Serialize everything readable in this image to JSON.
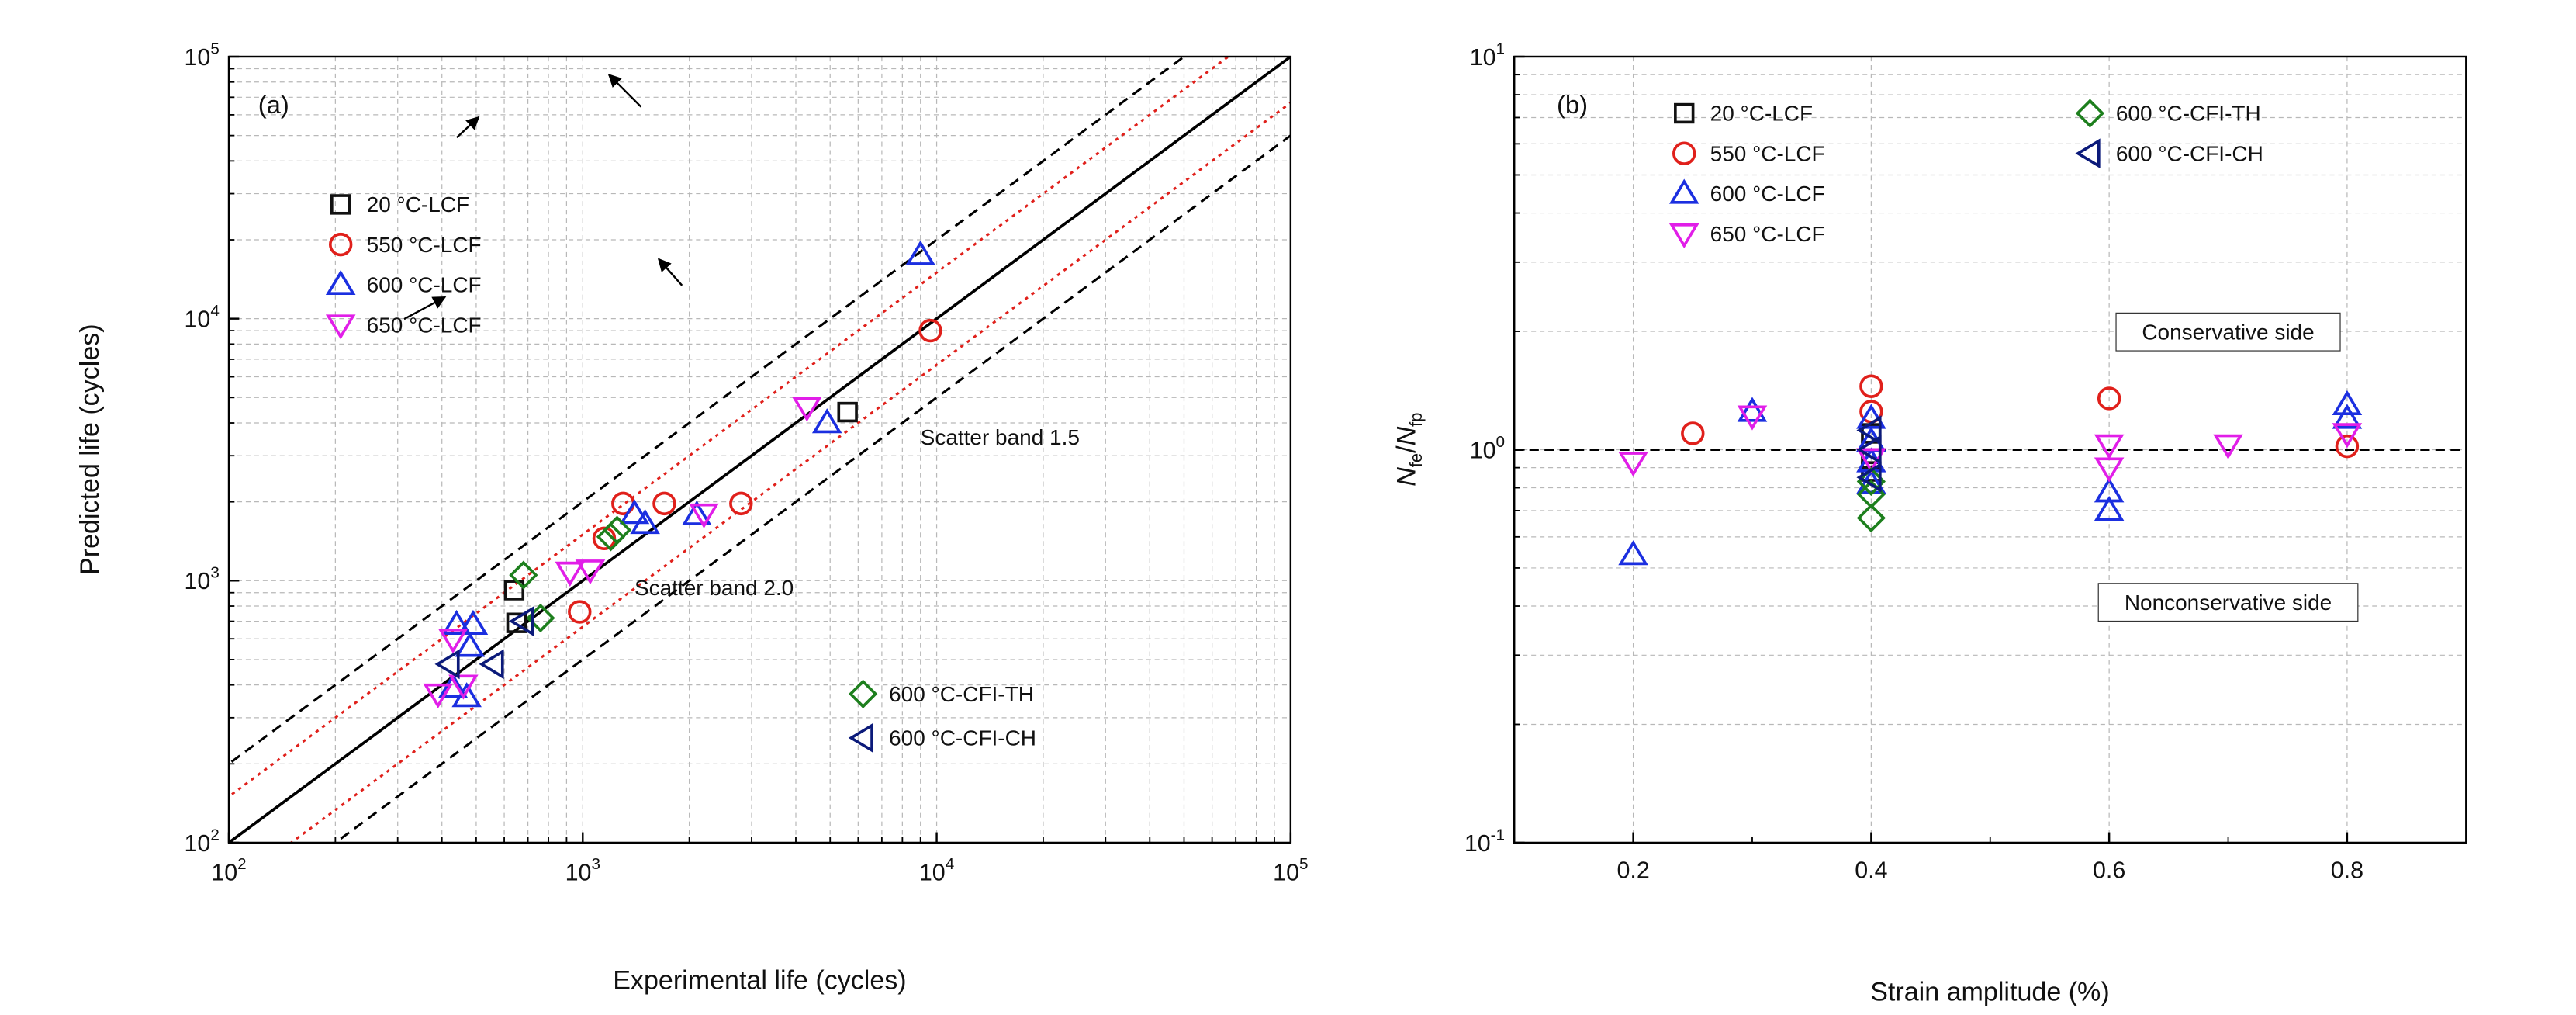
{
  "chart_data": [
    {
      "id": "a",
      "type": "scatter",
      "panel_label": "(a)",
      "xlabel": "Experimental life (cycles)",
      "ylabel": "Predicted life (cycles)",
      "xscale": "log",
      "yscale": "log",
      "xlim": [
        100,
        100000
      ],
      "ylim": [
        100,
        100000
      ],
      "x_tick_labels": [
        {
          "base": "10",
          "exp": "2"
        },
        {
          "base": "10",
          "exp": "3"
        },
        {
          "base": "10",
          "exp": "4"
        },
        {
          "base": "10",
          "exp": "5"
        }
      ],
      "y_tick_labels": [
        {
          "base": "10",
          "exp": "2"
        },
        {
          "base": "10",
          "exp": "3"
        },
        {
          "base": "10",
          "exp": "4"
        },
        {
          "base": "10",
          "exp": "5"
        }
      ],
      "grid": true,
      "reference_lines": [
        {
          "name": "1:1 line",
          "factor": 1,
          "style": "solid",
          "color": "#000000"
        },
        {
          "name": "Scatter band 1.5 upper",
          "factor": 1.5,
          "style": "dotted",
          "color": "#e0201b"
        },
        {
          "name": "Scatter band 1.5 lower",
          "factor": 0.6667,
          "style": "dotted",
          "color": "#e0201b"
        },
        {
          "name": "Scatter band 2.0 upper",
          "factor": 2,
          "style": "dashed",
          "color": "#000000"
        },
        {
          "name": "Scatter band 2.0 lower",
          "factor": 0.5,
          "style": "dashed",
          "color": "#000000"
        }
      ],
      "annotations": [
        {
          "text": "Scatter band 1.5",
          "x": 9000,
          "y": 3300
        },
        {
          "text": "Scatter band 2.0",
          "x": 1400,
          "y": 880
        }
      ],
      "series": [
        {
          "name": "20 °C-LCF",
          "marker": "square",
          "color": "#111111",
          "points": [
            [
              640,
              920
            ],
            [
              5600,
              4400
            ],
            [
              650,
              690
            ]
          ]
        },
        {
          "name": "550 °C-LCF",
          "marker": "circle",
          "color": "#e0201b",
          "points": [
            [
              980,
              760
            ],
            [
              1300,
              1970
            ],
            [
              1700,
              1970
            ],
            [
              2800,
              1970
            ],
            [
              9600,
              9000
            ],
            [
              1150,
              1450
            ]
          ]
        },
        {
          "name": "600 °C-LCF",
          "marker": "triangle-up",
          "color": "#1b2fe0",
          "points": [
            [
              9000,
              17500
            ],
            [
              4900,
              4000
            ],
            [
              1400,
              1800
            ],
            [
              1500,
              1650
            ],
            [
              2100,
              1780
            ],
            [
              440,
              680
            ],
            [
              490,
              680
            ],
            [
              430,
              390
            ],
            [
              470,
              360
            ],
            [
              480,
              560
            ]
          ]
        },
        {
          "name": "650 °C-LCF",
          "marker": "triangle-down",
          "color": "#e11ee8",
          "points": [
            [
              4300,
              4600
            ],
            [
              2200,
              1800
            ],
            [
              1050,
              1100
            ],
            [
              920,
              1080
            ],
            [
              390,
              370
            ],
            [
              460,
              400
            ],
            [
              430,
              600
            ]
          ]
        },
        {
          "name": "600 °C-CFI-TH",
          "marker": "diamond",
          "color": "#1d7f1d",
          "points": [
            [
              680,
              1050
            ],
            [
              760,
              720
            ],
            [
              1200,
              1470
            ],
            [
              1250,
              1560
            ]
          ]
        },
        {
          "name": "600 °C-CFI-CH",
          "marker": "triangle-left",
          "color": "#0b1a7a",
          "points": [
            [
              420,
              480
            ],
            [
              560,
              480
            ],
            [
              680,
              700
            ]
          ]
        }
      ],
      "legend_groups": [
        {
          "position": "top-left",
          "entries": [
            "20 °C-LCF",
            "550 °C-LCF",
            "600 °C-LCF",
            "650 °C-LCF"
          ]
        },
        {
          "position": "bottom-right",
          "entries": [
            "600 °C-CFI-TH",
            "600 °C-CFI-CH"
          ]
        }
      ]
    },
    {
      "id": "b",
      "type": "scatter",
      "panel_label": "(b)",
      "xlabel": "Strain amplitude (%)",
      "ylabel_main": "N",
      "ylabel_sub1": "fe",
      "ylabel_sub2": "fp",
      "xscale": "linear",
      "yscale": "log",
      "xlim": [
        0.1,
        0.9
      ],
      "ylim": [
        0.1,
        10
      ],
      "x_ticks": [
        0.2,
        0.4,
        0.6,
        0.8
      ],
      "x_tick_labels": [
        "0.2",
        "0.4",
        "0.6",
        "0.8"
      ],
      "y_tick_labels": [
        {
          "base": "10",
          "exp": "-1"
        },
        {
          "base": "10",
          "exp": "0"
        },
        {
          "base": "10",
          "exp": "1"
        }
      ],
      "grid": true,
      "reference_lines": [
        {
          "name": "ratio = 1",
          "y": 1,
          "style": "dashed",
          "color": "#000000"
        }
      ],
      "annotations": [
        {
          "text": "Conservative side",
          "x": 0.7,
          "y": 1.95
        },
        {
          "text": "Nonconservative side",
          "x": 0.7,
          "y": 0.4
        }
      ],
      "series": [
        {
          "name": "20 °C-LCF",
          "marker": "square",
          "color": "#111111",
          "points": [
            [
              0.4,
              1.1
            ],
            [
              0.4,
              0.88
            ],
            [
              0.4,
              0.95
            ]
          ]
        },
        {
          "name": "550 °C-LCF",
          "marker": "circle",
          "color": "#e0201b",
          "points": [
            [
              0.25,
              1.1
            ],
            [
              0.4,
              1.45
            ],
            [
              0.6,
              1.35
            ],
            [
              0.8,
              1.02
            ],
            [
              0.4,
              1.25
            ]
          ]
        },
        {
          "name": "600 °C-LCF",
          "marker": "triangle-up",
          "color": "#1b2fe0",
          "points": [
            [
              0.2,
              0.54
            ],
            [
              0.3,
              1.25
            ],
            [
              0.4,
              1.2
            ],
            [
              0.4,
              1.05
            ],
            [
              0.4,
              0.93
            ],
            [
              0.4,
              0.82
            ],
            [
              0.6,
              0.7
            ],
            [
              0.6,
              0.78
            ],
            [
              0.8,
              1.3
            ],
            [
              0.8,
              1.2
            ]
          ]
        },
        {
          "name": "650 °C-LCF",
          "marker": "triangle-down",
          "color": "#e11ee8",
          "points": [
            [
              0.2,
              0.93
            ],
            [
              0.3,
              1.22
            ],
            [
              0.4,
              0.95
            ],
            [
              0.6,
              1.03
            ],
            [
              0.6,
              0.9
            ],
            [
              0.7,
              1.03
            ],
            [
              0.8,
              1.1
            ]
          ]
        },
        {
          "name": "600 °C-CFI-TH",
          "marker": "diamond",
          "color": "#1d7f1d",
          "points": [
            [
              0.4,
              0.67
            ],
            [
              0.4,
              0.77
            ],
            [
              0.4,
              0.83
            ]
          ]
        },
        {
          "name": "600 °C-CFI-CH",
          "marker": "triangle-left",
          "color": "#0b1a7a",
          "points": [
            [
              0.4,
              1.12
            ],
            [
              0.4,
              1.0
            ],
            [
              0.4,
              0.85
            ]
          ]
        }
      ],
      "legend_groups": [
        {
          "position": "top-left",
          "entries": [
            "20 °C-LCF",
            "550 °C-LCF",
            "600 °C-LCF",
            "650 °C-LCF"
          ]
        },
        {
          "position": "top-right",
          "entries": [
            "600 °C-CFI-TH",
            "600 °C-CFI-CH"
          ]
        }
      ]
    }
  ]
}
